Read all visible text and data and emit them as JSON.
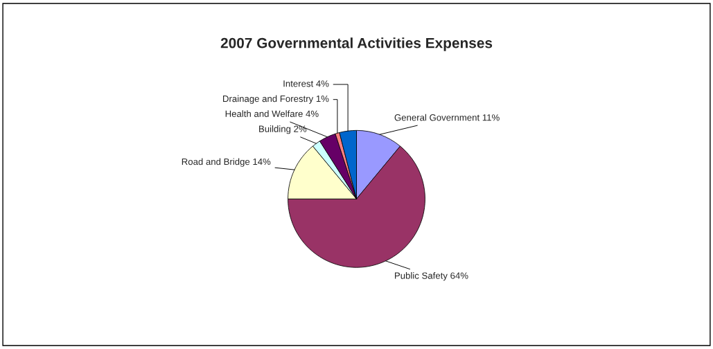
{
  "chart_data": {
    "type": "pie",
    "title": "2007 Governmental Activities Expenses",
    "categories": [
      "General Government",
      "Public Safety",
      "Road and Bridge",
      "Building",
      "Health and Welfare",
      "Drainage and Forestry",
      "Interest"
    ],
    "values": [
      11,
      64,
      14,
      2,
      4,
      1,
      4
    ],
    "value_labels": [
      "11%",
      "64%",
      "14%",
      "2%",
      "4%",
      "1%",
      "4%"
    ],
    "colors": [
      "#9999ff",
      "#993366",
      "#ffffcc",
      "#ccffff",
      "#660066",
      "#ff8080",
      "#0066cc"
    ],
    "legend": false
  }
}
